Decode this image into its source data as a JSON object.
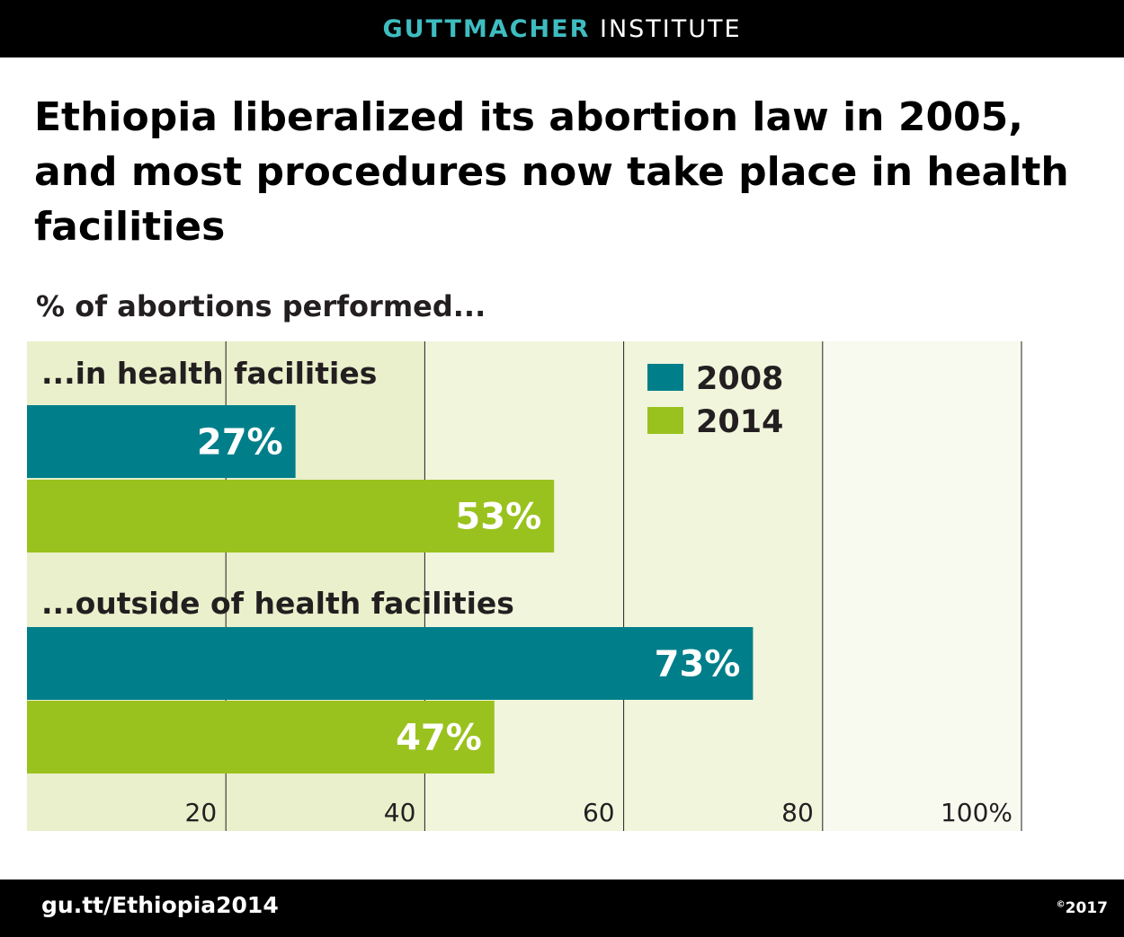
{
  "header": {
    "brand_bold": "GUTTMACHER",
    "brand_light": "INSTITUTE"
  },
  "footer": {
    "url": "gu.tt/Ethiopia2014",
    "copyright_symbol": "©",
    "year": "2017"
  },
  "colors": {
    "series_2008": "#007f8a",
    "series_2014": "#9ac21f",
    "brand_teal": "#3fbcc0",
    "plot_band_dark": "#e9f0cb",
    "plot_band_mid": "#f0f5dc",
    "plot_band_light": "#f8f9ef"
  },
  "chart_data": {
    "type": "bar",
    "orientation": "horizontal",
    "title": "Ethiopia liberalized its abortion law in 2005, and most procedures now take place in health facilities",
    "subtitle": "% of abortions performed...",
    "categories": [
      "...in health facilities",
      "...outside of health facilities"
    ],
    "series": [
      {
        "name": "2008",
        "values": [
          27,
          73
        ],
        "labels": [
          "27%",
          "73%"
        ]
      },
      {
        "name": "2014",
        "values": [
          53,
          47
        ],
        "labels": [
          "53%",
          "47%"
        ]
      }
    ],
    "xlim": [
      0,
      100
    ],
    "xticks": [
      20,
      40,
      60,
      80,
      100
    ],
    "xtick_labels": [
      "20",
      "40",
      "60",
      "80",
      "100%"
    ],
    "grid": true,
    "legend_position": "top-right"
  }
}
